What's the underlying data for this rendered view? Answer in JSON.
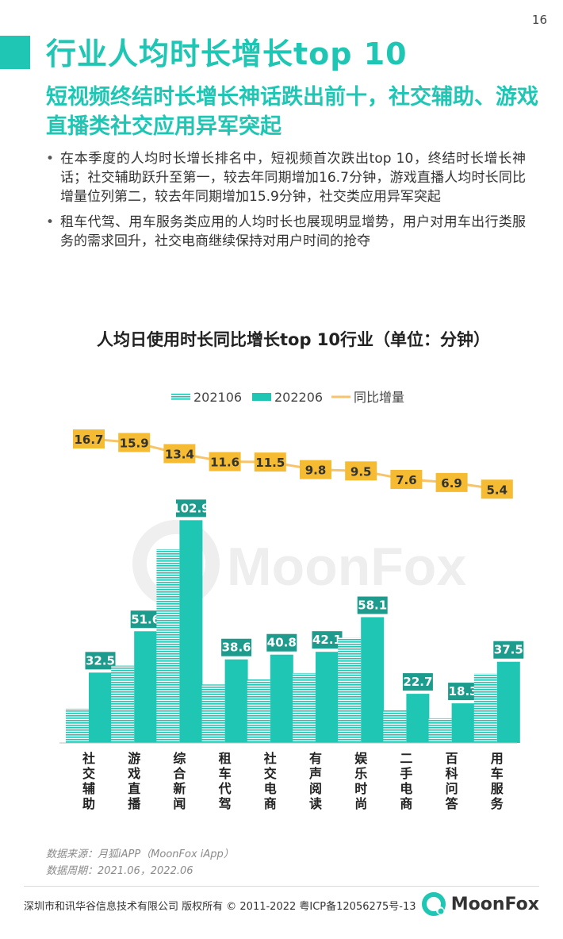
{
  "page_number": "16",
  "page_title": "行业人均时长增长top 10",
  "subtitle": "短视频终结时长增长神话跌出前十，社交辅助、游戏直播类社交应用异军突起",
  "bullets": [
    "在本季度的人均时长增长排名中，短视频首次跌出top 10，终结时长增长神话；社交辅助跃升至第一，较去年同期增加16.7分钟，游戏直播人均时长同比增量位列第二，较去年同期增加15.9分钟，社交类应用异军突起",
    "租车代驾、用车服务类应用的人均时长也展现明显增势，用户对用车出行类服务的需求回升，社交电商继续保持对用户时间的抢夺"
  ],
  "watermark": "MoonFox",
  "chart_data": {
    "type": "bar",
    "title": "人均日使用时长同比增长top 10行业（单位：分钟）",
    "categories": [
      "社交辅助",
      "游戏直播",
      "综合新闻",
      "租车代驾",
      "社交电商",
      "有声阅读",
      "娱乐时尚",
      "二手电商",
      "百科问答",
      "用车服务"
    ],
    "series": [
      {
        "name": "202106",
        "values": [
          15.8,
          35.7,
          89.5,
          27.0,
          29.3,
          32.3,
          48.6,
          15.1,
          11.4,
          32.1
        ],
        "color": "#1fc6b4",
        "pattern": "striped"
      },
      {
        "name": "202206",
        "values": [
          32.5,
          51.6,
          102.9,
          38.6,
          40.8,
          42.1,
          58.1,
          22.7,
          18.3,
          37.5
        ],
        "color": "#1fc6b4",
        "pattern": "solid"
      },
      {
        "name": "同比增量",
        "values": [
          16.7,
          15.9,
          13.4,
          11.6,
          11.5,
          9.8,
          9.5,
          7.6,
          6.9,
          5.4
        ],
        "color": "#f7c46c",
        "type": "line"
      }
    ],
    "legend_position": "top-center",
    "grid": false,
    "ylim": [
      0,
      110
    ]
  },
  "source": {
    "line1": "数据来源：月狐iAPP（MoonFox iApp）",
    "line2": "数据周期：2021.06，2022.06"
  },
  "footer": {
    "copyright": "深圳市和讯华谷信息技术有限公司 版权所有 © 2011-2022 粤ICP备12056275号-13",
    "logo_text": "MoonFox"
  },
  "colors": {
    "accent": "#1fc6b4",
    "line": "#f7c46c",
    "label_box": "#f5bb33",
    "bar_label_box": "#1d9b8c"
  }
}
